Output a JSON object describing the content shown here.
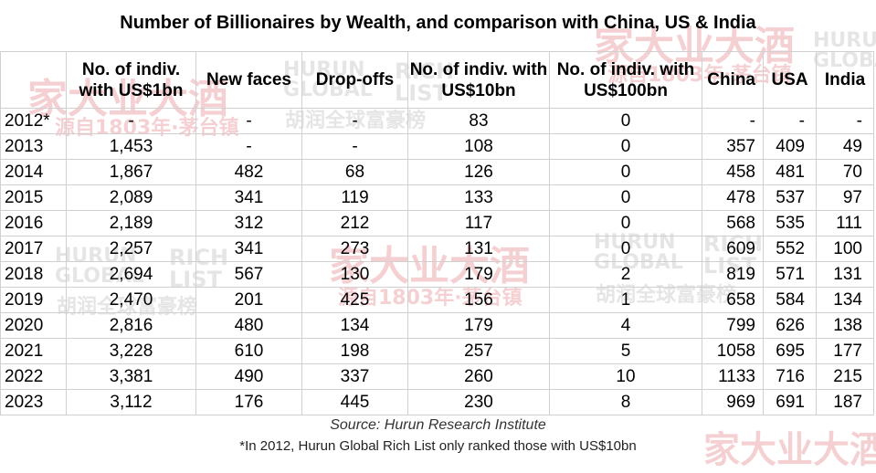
{
  "title": "Number of Billionaires by Wealth, and comparison with China, US & India",
  "chart_data": {
    "type": "table",
    "title": "Number of Billionaires by Wealth, and comparison with China, US & India",
    "columns": [
      "",
      "No. of indiv. with US$1bn",
      "New faces",
      "Drop-offs",
      "No. of indiv. with US$10bn",
      "No. of indiv. with US$100bn",
      "China",
      "USA",
      "India"
    ],
    "rows": [
      [
        "2012*",
        "-",
        "-",
        "-",
        "83",
        "0",
        "-",
        "-",
        "-"
      ],
      [
        "2013",
        "1,453",
        "-",
        "-",
        "108",
        "0",
        "357",
        "409",
        "49"
      ],
      [
        "2014",
        "1,867",
        "482",
        "68",
        "126",
        "0",
        "458",
        "481",
        "70"
      ],
      [
        "2015",
        "2,089",
        "341",
        "119",
        "133",
        "0",
        "478",
        "537",
        "97"
      ],
      [
        "2016",
        "2,189",
        "312",
        "212",
        "117",
        "0",
        "568",
        "535",
        "111"
      ],
      [
        "2017",
        "2,257",
        "341",
        "273",
        "131",
        "0",
        "609",
        "552",
        "100"
      ],
      [
        "2018",
        "2,694",
        "567",
        "130",
        "179",
        "2",
        "819",
        "571",
        "131"
      ],
      [
        "2019",
        "2,470",
        "201",
        "425",
        "156",
        "1",
        "658",
        "584",
        "134"
      ],
      [
        "2020",
        "2,816",
        "480",
        "134",
        "179",
        "4",
        "799",
        "626",
        "138"
      ],
      [
        "2021",
        "3,228",
        "610",
        "198",
        "257",
        "5",
        "1058",
        "695",
        "177"
      ],
      [
        "2022",
        "3,381",
        "490",
        "337",
        "260",
        "10",
        "1133",
        "716",
        "215"
      ],
      [
        "2023",
        "3,112",
        "176",
        "445",
        "230",
        "8",
        "969",
        "691",
        "187"
      ]
    ]
  },
  "source": "Source: Hurun Research Institute",
  "note": "*In 2012, Hurun Global Rich List only ranked those with US$10bn",
  "watermarks": {
    "brand_cn": "家大业大酒",
    "brand_sub": "源自1803年·茅台镇",
    "hurun_en": "HURUN GLOBAL",
    "rich_list": "RICH LIST",
    "hurun_cn": "胡润全球富豪榜"
  },
  "colors": {
    "watermark_red": "#d6303b",
    "watermark_gray": "#8c8c8c",
    "grid": "#d0d0d0"
  }
}
